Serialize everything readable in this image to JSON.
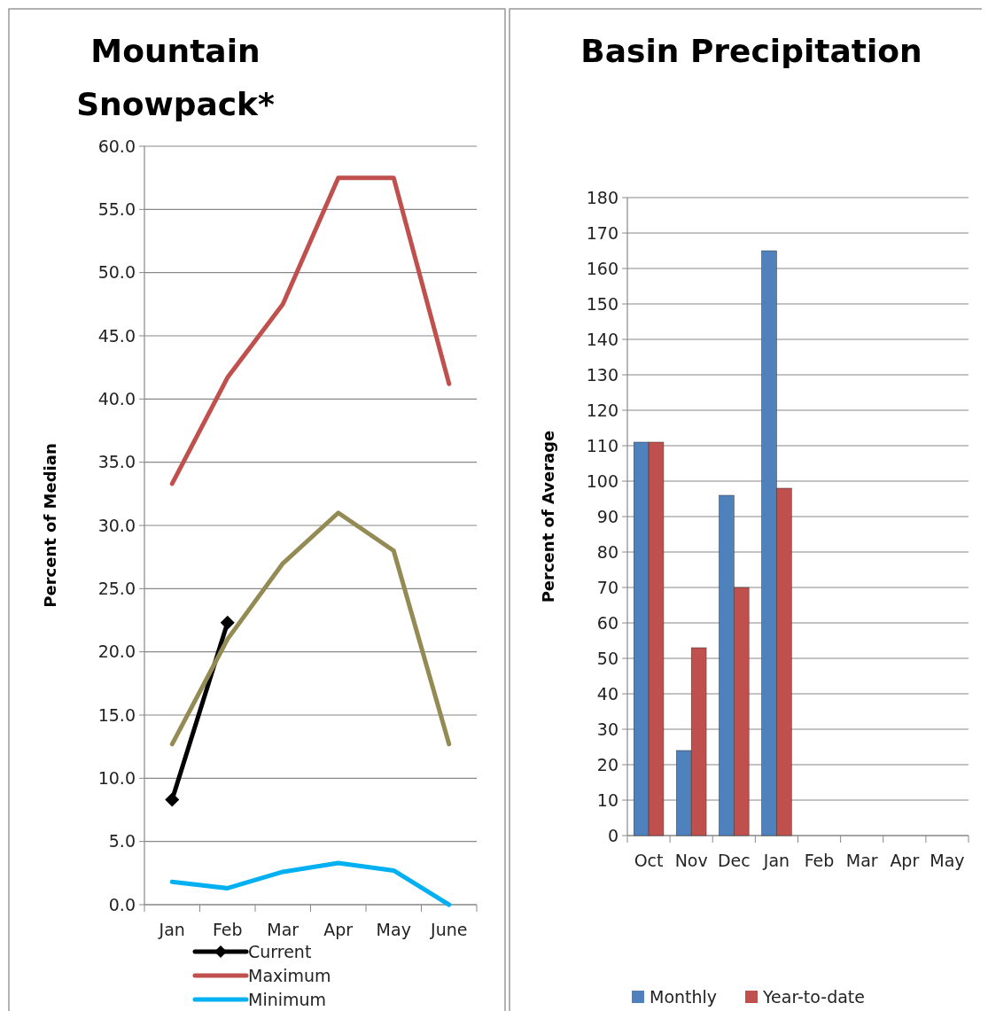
{
  "chart_data": [
    {
      "type": "line",
      "title": "Mountain Snowpack*",
      "ylabel": "Percent of Median",
      "categories": [
        "Jan",
        "Feb",
        "Mar",
        "Apr",
        "May",
        "June"
      ],
      "series": [
        {
          "name": "Current",
          "color": "#000000",
          "marker": "diamond",
          "values": [
            8.3,
            22.3,
            null,
            null,
            null,
            null
          ]
        },
        {
          "name": "Maximum",
          "color": "#c0504d",
          "values": [
            33.3,
            41.7,
            47.5,
            57.5,
            57.5,
            41.2
          ]
        },
        {
          "name": "Minimum",
          "color": "#00b0f0",
          "values": [
            1.8,
            1.3,
            2.6,
            3.3,
            2.7,
            0
          ]
        },
        {
          "color": "#948a54",
          "values": [
            12.7,
            21,
            27,
            31,
            28,
            12.7
          ]
        }
      ],
      "ylim": [
        0,
        60
      ],
      "yticks": [
        {
          "value": 0,
          "label": "0.0"
        },
        {
          "value": 5,
          "label": "5.0"
        },
        {
          "value": 10,
          "label": "10.0"
        },
        {
          "value": 15,
          "label": "15.0"
        },
        {
          "value": 20,
          "label": "20.0"
        },
        {
          "value": 25,
          "label": "25.0"
        },
        {
          "value": 30,
          "label": "30.0"
        },
        {
          "value": 35,
          "label": "35.0"
        },
        {
          "value": 40,
          "label": "40.0"
        },
        {
          "value": 45,
          "label": "45.0"
        },
        {
          "value": 50,
          "label": "50.0"
        },
        {
          "value": 55,
          "label": "55.0"
        },
        {
          "value": 60,
          "label": "60.0"
        }
      ],
      "grid": "y",
      "legend": "bottom"
    },
    {
      "type": "bar",
      "title": "Basin Precipitation",
      "ylabel": "Percent of Average",
      "categories": [
        "Oct",
        "Nov",
        "Dec",
        "Jan",
        "Feb",
        "Mar",
        "Apr",
        "May"
      ],
      "series": [
        {
          "name": "Monthly",
          "color": "#4f81bd",
          "values": [
            111,
            24,
            96,
            165,
            null,
            null,
            null,
            null
          ]
        },
        {
          "name": "Year-to-date",
          "color": "#c0504d",
          "values": [
            111,
            53,
            70,
            98,
            null,
            null,
            null,
            null
          ]
        }
      ],
      "ylim": [
        0,
        180
      ],
      "yticks": [
        0,
        10,
        20,
        30,
        40,
        50,
        60,
        70,
        80,
        90,
        100,
        110,
        120,
        130,
        140,
        150,
        160,
        170,
        180
      ],
      "grid": "y",
      "legend": "bottom"
    }
  ]
}
